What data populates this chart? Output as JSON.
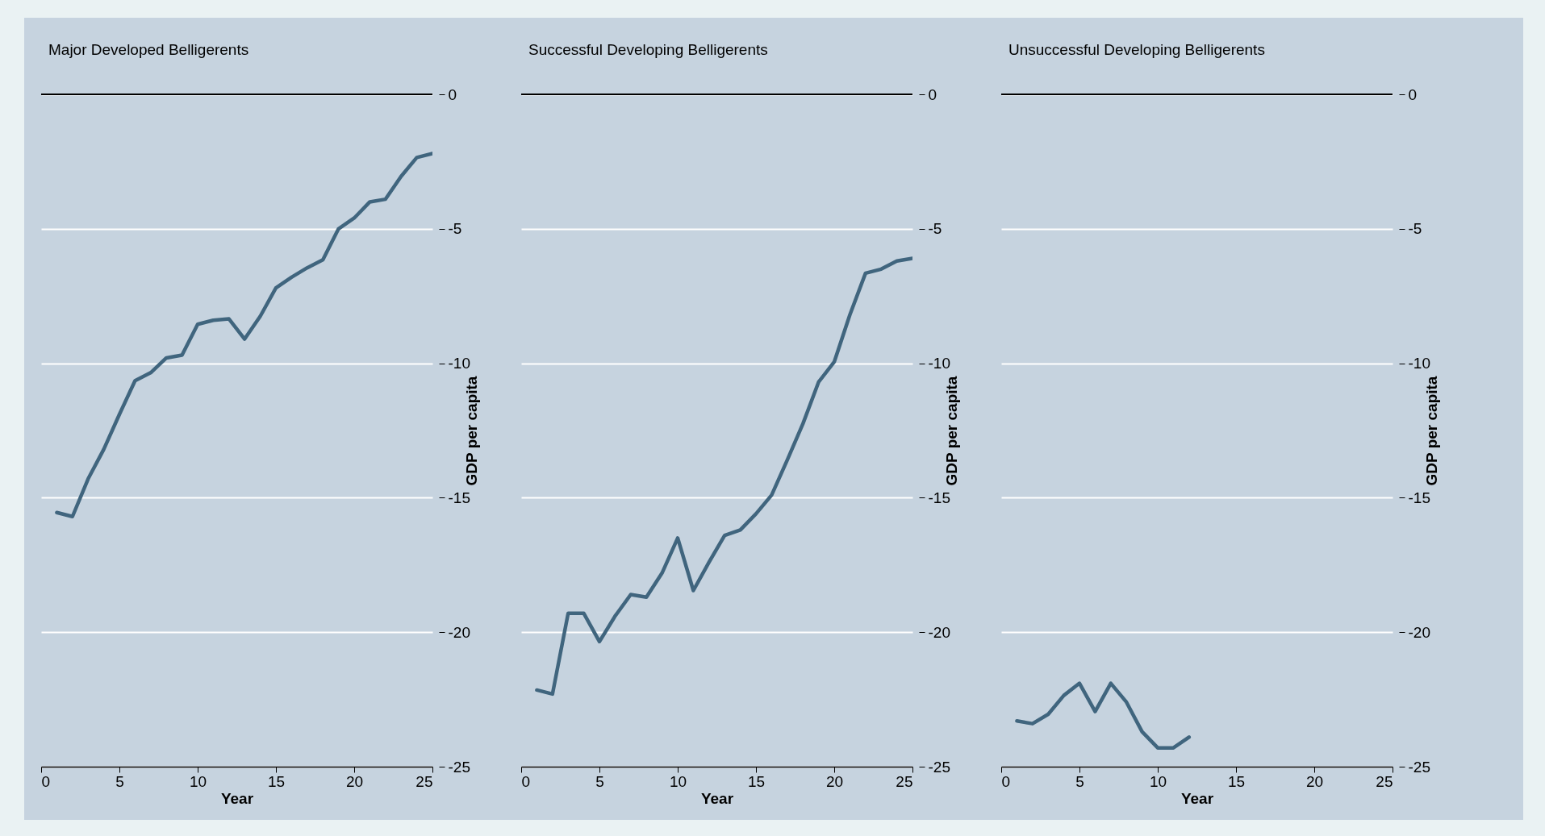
{
  "chart_data": [
    {
      "type": "line",
      "title": "Major Developed Belligerents",
      "xlabel": "Year",
      "ylabel": "GDP per capita",
      "x": [
        1,
        2,
        3,
        4,
        5,
        6,
        7,
        8,
        9,
        10,
        11,
        12,
        13,
        14,
        15,
        16,
        17,
        18,
        19,
        20,
        21,
        22,
        23,
        24,
        25
      ],
      "values": [
        -15.55,
        -15.7,
        -14.3,
        -13.2,
        -11.9,
        -10.65,
        -10.35,
        -9.8,
        -9.7,
        -8.55,
        -8.4,
        -8.35,
        -9.1,
        -8.25,
        -7.2,
        -6.8,
        -6.45,
        -6.15,
        -5.0,
        -4.6,
        -4.0,
        -3.9,
        -3.05,
        -2.35,
        -2.2
      ],
      "color": "#40657e",
      "xlim": [
        0,
        25
      ],
      "xticks": [
        0,
        5,
        10,
        15,
        20,
        25
      ],
      "ylim": [
        -25,
        0
      ],
      "yticks": [
        0,
        -5,
        -10,
        -15,
        -20,
        -25
      ],
      "grid": "y",
      "ref_lines": [
        {
          "axis": "y",
          "value": 0,
          "color": "#000000"
        }
      ]
    },
    {
      "type": "line",
      "title": "Successful Developing Belligerents",
      "xlabel": "Year",
      "ylabel": "GDP per capita",
      "x": [
        1,
        2,
        3,
        4,
        5,
        6,
        7,
        8,
        9,
        10,
        11,
        12,
        13,
        14,
        15,
        16,
        17,
        18,
        19,
        20,
        21,
        22,
        23,
        24,
        25
      ],
      "values": [
        -22.15,
        -22.3,
        -19.3,
        -19.3,
        -20.35,
        -19.4,
        -18.6,
        -18.7,
        -17.8,
        -16.5,
        -18.45,
        -17.4,
        -16.4,
        -16.2,
        -15.6,
        -14.9,
        -13.6,
        -12.25,
        -10.7,
        -9.95,
        -8.2,
        -6.65,
        -6.5,
        -6.2,
        -6.1
      ],
      "color": "#40657e",
      "xlim": [
        0,
        25
      ],
      "xticks": [
        0,
        5,
        10,
        15,
        20,
        25
      ],
      "ylim": [
        -25,
        0
      ],
      "yticks": [
        0,
        -5,
        -10,
        -15,
        -20,
        -25
      ],
      "grid": "y",
      "ref_lines": [
        {
          "axis": "y",
          "value": 0,
          "color": "#000000"
        }
      ]
    },
    {
      "type": "line",
      "title": "Unsuccessful Developing Belligerents",
      "xlabel": "Year",
      "ylabel": "GDP per capita",
      "x": [
        1,
        2,
        3,
        4,
        5,
        6,
        7,
        8,
        9,
        10,
        11,
        12
      ],
      "values": [
        -23.3,
        -23.4,
        -23.05,
        -22.35,
        -21.9,
        -22.95,
        -21.9,
        -22.6,
        -23.7,
        -24.3,
        -24.3,
        -23.9
      ],
      "color": "#40657e",
      "xlim": [
        0,
        25
      ],
      "xticks": [
        0,
        5,
        10,
        15,
        20,
        25
      ],
      "ylim": [
        -25,
        0
      ],
      "yticks": [
        0,
        -5,
        -10,
        -15,
        -20,
        -25
      ],
      "grid": "y",
      "ref_lines": [
        {
          "axis": "y",
          "value": 0,
          "color": "#000000"
        }
      ]
    }
  ]
}
